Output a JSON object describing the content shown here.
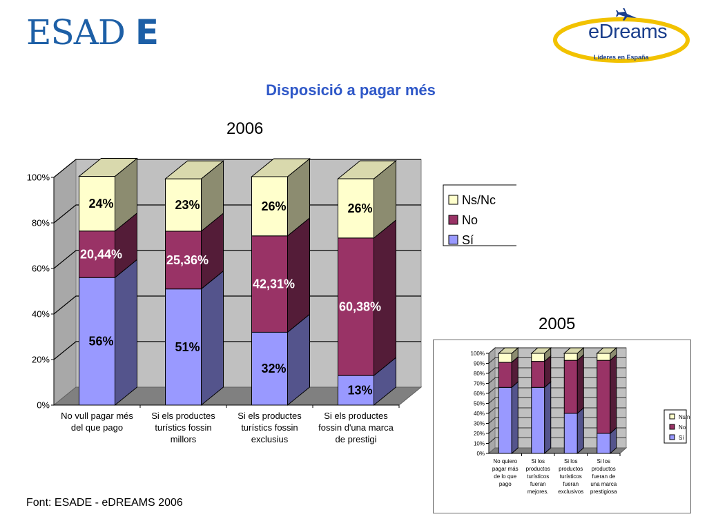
{
  "header": {
    "esade_logo_text": "ESADE",
    "edreams_logo_text": "eDreams",
    "edreams_tagline": "Líderes en España",
    "title": "Disposició a pagar més"
  },
  "footer": {
    "source": "Font: ESADE - eDREAMS 2006"
  },
  "colors": {
    "si": "#9999ff",
    "no": "#993366",
    "nsnc": "#ffffcc",
    "title": "#2f58c8",
    "brand_blue": "#1d5fa6"
  },
  "chart_data": [
    {
      "type": "bar",
      "stacked": "percent",
      "title": "2006",
      "categories": [
        [
          "No vull pagar més",
          "del que pago"
        ],
        [
          "Si els productes",
          "turístics fossin",
          "millors"
        ],
        [
          "Si els productes",
          "turístics fossin",
          "exclusius"
        ],
        [
          "Si els productes",
          "fossin d'una marca",
          "de prestigi"
        ]
      ],
      "series": [
        {
          "name": "Sí",
          "values": [
            56,
            51,
            32,
            13
          ],
          "labels": [
            "56%",
            "51%",
            "32%",
            "13%"
          ]
        },
        {
          "name": "No",
          "values": [
            20.44,
            25.36,
            42.31,
            60.38
          ],
          "labels": [
            "20,44%",
            "25,36%",
            "42,31%",
            "60,38%"
          ]
        },
        {
          "name": "Ns/Nc",
          "values": [
            24,
            23,
            26,
            26
          ],
          "labels": [
            "24%",
            "23%",
            "26%",
            "26%"
          ]
        }
      ],
      "legend_order": [
        "Ns/Nc",
        "No",
        "Sí"
      ],
      "ylim": [
        0,
        100
      ],
      "yticks": [
        "0%",
        "20%",
        "40%",
        "60%",
        "80%",
        "100%"
      ],
      "grid": true,
      "legend": "right"
    },
    {
      "type": "bar",
      "stacked": "percent",
      "title": "2005",
      "categories": [
        [
          "No quiero",
          "pagar más",
          "de lo que",
          "pago"
        ],
        [
          "Si los",
          "productos",
          "turísticos",
          "fueran",
          "mejores."
        ],
        [
          "Si los",
          "productos",
          "turísticos",
          "fueran",
          "exclusivos"
        ],
        [
          "Si los",
          "productos",
          "fueran de",
          "una marca",
          "prestigiosa"
        ]
      ],
      "series": [
        {
          "name": "Sí",
          "values": [
            66,
            66,
            40,
            20
          ]
        },
        {
          "name": "No",
          "values": [
            25,
            26,
            53,
            73
          ]
        },
        {
          "name": "Ns/nc",
          "values": [
            9,
            8,
            7,
            7
          ]
        }
      ],
      "legend_order": [
        "Ns/nc",
        "No",
        "Sí"
      ],
      "ylim": [
        0,
        100
      ],
      "yticks": [
        "0%",
        "10%",
        "20%",
        "30%",
        "40%",
        "50%",
        "60%",
        "70%",
        "80%",
        "90%",
        "100%"
      ],
      "grid": true,
      "legend": "right"
    }
  ]
}
